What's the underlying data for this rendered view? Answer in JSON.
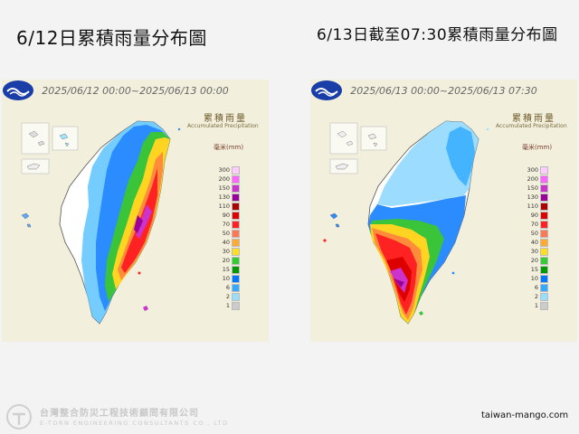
{
  "left_panel": {
    "title": "6/12日累積雨量分布圖",
    "period": "2025/06/12 00:00~2025/06/13 00:00"
  },
  "right_panel": {
    "title": "6/13日截至07:30累積雨量分布圖",
    "period": "2025/06/13 00:00~2025/06/13 07:30"
  },
  "legend": {
    "title": "累積雨量",
    "subtitle": "Accumulated Precipitation",
    "unit": "毫米(mm)",
    "levels": [
      {
        "label": "300",
        "color": "#ffccff"
      },
      {
        "label": "200",
        "color": "#ff66ff"
      },
      {
        "label": "150",
        "color": "#cc33cc"
      },
      {
        "label": "130",
        "color": "#990099"
      },
      {
        "label": "110",
        "color": "#aa0000"
      },
      {
        "label": "90",
        "color": "#dd0000"
      },
      {
        "label": "70",
        "color": "#ff2222"
      },
      {
        "label": "50",
        "color": "#ff7755"
      },
      {
        "label": "40",
        "color": "#ffaa33"
      },
      {
        "label": "30",
        "color": "#ffdd22"
      },
      {
        "label": "20",
        "color": "#33cc33"
      },
      {
        "label": "15",
        "color": "#009900"
      },
      {
        "label": "10",
        "color": "#0077ff"
      },
      {
        "label": "6",
        "color": "#33aaff"
      },
      {
        "label": "2",
        "color": "#99ddff"
      },
      {
        "label": "1",
        "color": "#cccccc"
      }
    ]
  },
  "logos": {
    "cwb": "cwb-logo-icon",
    "company": "company-logo-icon"
  },
  "footer": {
    "company_name": "台灣整合防災工程技術顧問有限公司",
    "company_en": "E-TORN ENGINEERING CONSULTANTS CO., LTD",
    "website": "taiwan-mango.com"
  }
}
